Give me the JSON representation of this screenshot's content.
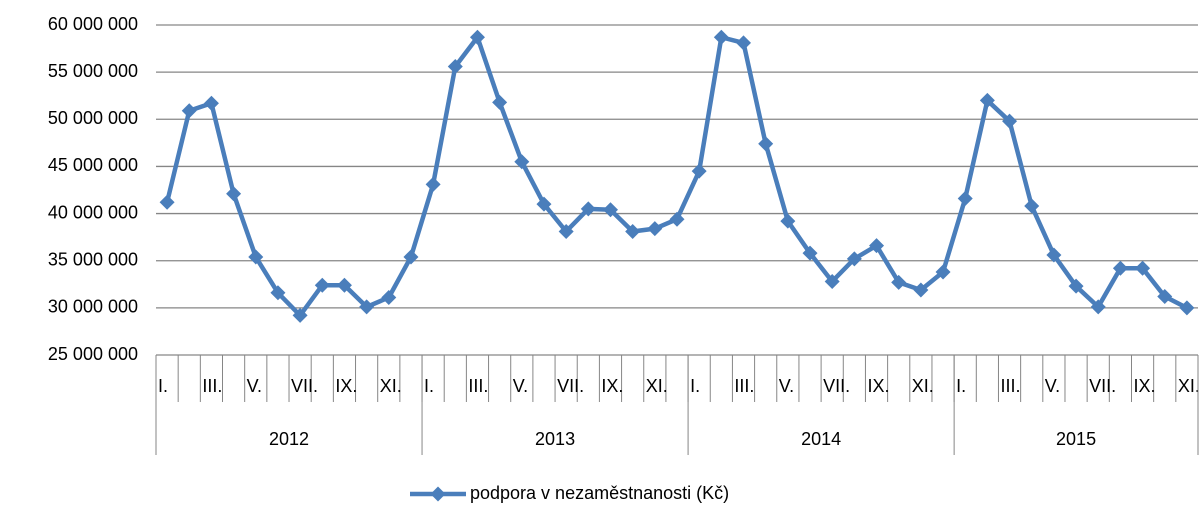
{
  "chart_data": {
    "type": "line",
    "categories": [
      "I.",
      null,
      "III.",
      null,
      "V.",
      null,
      "VII.",
      null,
      "IX.",
      null,
      "XI.",
      null,
      "I.",
      null,
      "III.",
      null,
      "V.",
      null,
      "VII.",
      null,
      "IX.",
      null,
      "XI.",
      null,
      "I.",
      null,
      "III.",
      null,
      "V.",
      null,
      "VII.",
      null,
      "IX.",
      null,
      "XI.",
      null,
      "I.",
      null,
      "III.",
      null,
      "V.",
      null,
      "VII.",
      null,
      "IX.",
      null,
      "XI."
    ],
    "category_groups": [
      {
        "label": "2012",
        "size": 12
      },
      {
        "label": "2013",
        "size": 12
      },
      {
        "label": "2014",
        "size": 12
      },
      {
        "label": "2015",
        "size": 11
      }
    ],
    "series": [
      {
        "name": "podpora v nezaměstnanosti (Kč)",
        "color": "#4a7ebb",
        "values": [
          41200000,
          50900000,
          51700000,
          42100000,
          35400000,
          31600000,
          29200000,
          32400000,
          32400000,
          30100000,
          31100000,
          35400000,
          43100000,
          55600000,
          58700000,
          51800000,
          45500000,
          41000000,
          38100000,
          40500000,
          40400000,
          38100000,
          38400000,
          39400000,
          44500000,
          58700000,
          58100000,
          47400000,
          39200000,
          35800000,
          32800000,
          35200000,
          36600000,
          32700000,
          31900000,
          33800000,
          41600000,
          52000000,
          49800000,
          40800000,
          35600000,
          32300000,
          30100000,
          34200000,
          34200000,
          31200000,
          30000000
        ]
      }
    ],
    "ylim": [
      25000000,
      60000000
    ],
    "yticks": [
      {
        "value": 25000000,
        "label": "25 000 000"
      },
      {
        "value": 30000000,
        "label": "30 000 000"
      },
      {
        "value": 35000000,
        "label": "35 000 000"
      },
      {
        "value": 40000000,
        "label": "40 000 000"
      },
      {
        "value": 45000000,
        "label": "45 000 000"
      },
      {
        "value": 50000000,
        "label": "50 000 000"
      },
      {
        "value": 55000000,
        "label": "55 000 000"
      },
      {
        "value": 60000000,
        "label": "60 000 000"
      }
    ],
    "grid": true,
    "legend": "bottom"
  }
}
